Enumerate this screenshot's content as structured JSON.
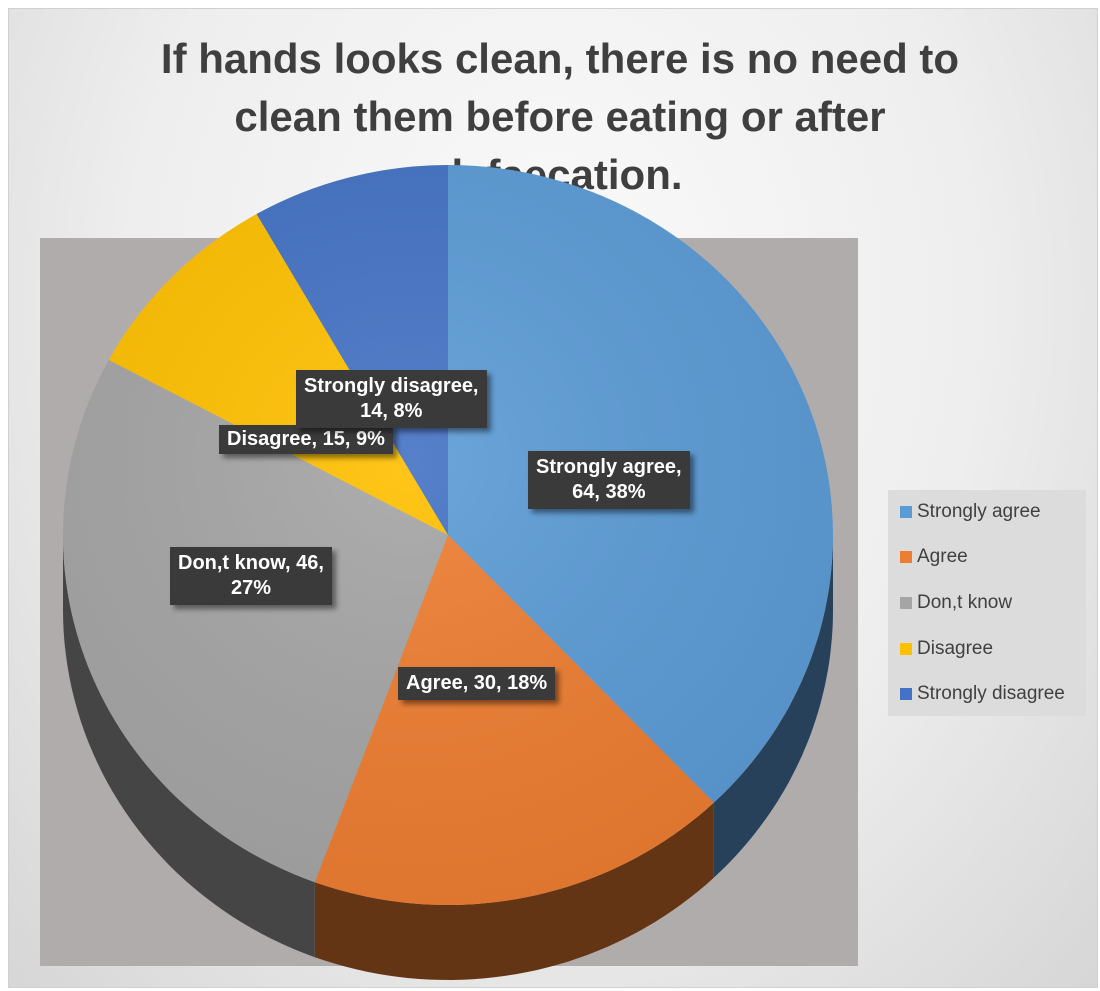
{
  "chart_data": {
    "type": "pie",
    "title": "If hands looks clean, there is no need to clean them before eating or after defaecation.",
    "title_lines": [
      "If hands looks clean, there is no need to",
      "clean them before eating or after",
      "defaecation."
    ],
    "categories": [
      "Strongly agree",
      "Agree",
      "Don,t know",
      "Disagree",
      "Strongly disagree"
    ],
    "values": [
      64,
      30,
      46,
      15,
      14
    ],
    "percents": [
      "38%",
      "18%",
      "27%",
      "9%",
      "8%"
    ],
    "colors": [
      "#5b9bd5",
      "#ed7d31",
      "#a5a5a5",
      "#ffc000",
      "#4472c4"
    ],
    "data_labels": [
      [
        "Strongly agree,",
        "64, 38%"
      ],
      [
        "Agree, 30, 18%"
      ],
      [
        "Don,t know, 46,",
        "27%"
      ],
      [
        "Disagree, 15, 9%"
      ],
      [
        "Strongly disagree,",
        "14, 8%"
      ]
    ],
    "legend_position": "right",
    "style": "3d"
  }
}
